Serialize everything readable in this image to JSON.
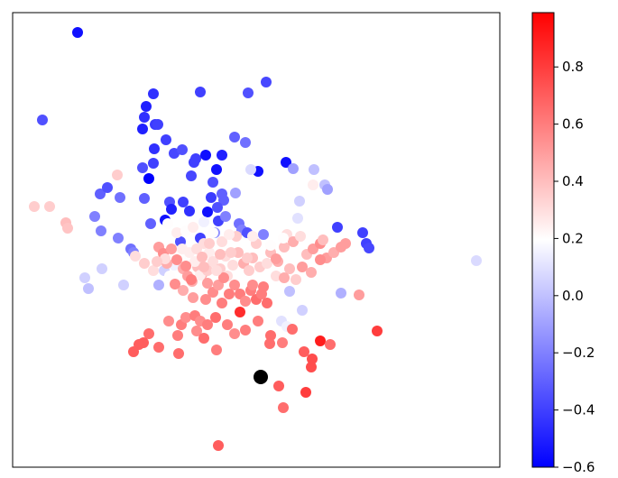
{
  "chart_data": {
    "type": "scatter",
    "title": "",
    "xlabel": "",
    "ylabel": "",
    "x_ticks_visible": false,
    "y_ticks_visible": false,
    "colormap": {
      "name": "bwr",
      "low": "#0000ff",
      "mid": "#ffffff",
      "high": "#ff0000"
    },
    "colorbar": {
      "range": [
        -0.6,
        0.99
      ],
      "ticks": [
        -0.6,
        -0.4,
        -0.2,
        0.0,
        0.2,
        0.4,
        0.6,
        0.8
      ],
      "tick_labels": [
        "−0.6",
        "−0.4",
        "−0.2",
        "0.0",
        "0.2",
        "0.4",
        "0.6",
        "0.8"
      ]
    },
    "marker": {
      "x": 289,
      "y": 418,
      "color": "#000000"
    },
    "points": [
      [
        86,
        36,
        -0.55
      ],
      [
        47,
        133,
        -0.35
      ],
      [
        170,
        104,
        -0.45
      ],
      [
        222,
        102,
        -0.4
      ],
      [
        275,
        103,
        -0.35
      ],
      [
        295,
        91,
        -0.38
      ],
      [
        162,
        118,
        -0.5
      ],
      [
        160,
        130,
        -0.45
      ],
      [
        172,
        138,
        -0.42
      ],
      [
        158,
        143,
        -0.5
      ],
      [
        175,
        138,
        -0.4
      ],
      [
        184,
        155,
        -0.4
      ],
      [
        171,
        165,
        -0.45
      ],
      [
        158,
        186,
        -0.35
      ],
      [
        193,
        170,
        -0.38
      ],
      [
        202,
        166,
        -0.35
      ],
      [
        217,
        176,
        -0.4
      ],
      [
        228,
        172,
        -0.55
      ],
      [
        246,
        172,
        -0.5
      ],
      [
        240,
        188,
        -0.55
      ],
      [
        215,
        180,
        -0.4
      ],
      [
        212,
        195,
        -0.38
      ],
      [
        260,
        152,
        -0.3
      ],
      [
        272,
        158,
        -0.25
      ],
      [
        286,
        190,
        -0.55
      ],
      [
        317,
        180,
        -0.55
      ],
      [
        278,
        188,
        0.08
      ],
      [
        325,
        187,
        -0.1
      ],
      [
        348,
        188,
        0.0
      ],
      [
        170,
        181,
        -0.4
      ],
      [
        165,
        198,
        -0.6
      ],
      [
        111,
        215,
        -0.3
      ],
      [
        119,
        208,
        -0.35
      ],
      [
        133,
        219,
        -0.25
      ],
      [
        160,
        220,
        -0.3
      ],
      [
        167,
        248,
        -0.3
      ],
      [
        105,
        240,
        -0.2
      ],
      [
        112,
        256,
        -0.2
      ],
      [
        188,
        224,
        -0.35
      ],
      [
        183,
        244,
        -0.55
      ],
      [
        190,
        232,
        -0.5
      ],
      [
        203,
        224,
        -0.4
      ],
      [
        210,
        234,
        -0.45
      ],
      [
        230,
        235,
        -0.55
      ],
      [
        234,
        219,
        -0.42
      ],
      [
        236,
        202,
        -0.35
      ],
      [
        246,
        215,
        -0.3
      ],
      [
        248,
        222,
        -0.3
      ],
      [
        242,
        245,
        -0.4
      ],
      [
        250,
        240,
        -0.2
      ],
      [
        261,
        214,
        -0.1
      ],
      [
        265,
        248,
        -0.25
      ],
      [
        241,
        230,
        -0.35
      ],
      [
        131,
        264,
        -0.2
      ],
      [
        145,
        276,
        -0.25
      ],
      [
        148,
        280,
        -0.2
      ],
      [
        200,
        268,
        -0.35
      ],
      [
        222,
        264,
        -0.4
      ],
      [
        238,
        258,
        -0.15
      ],
      [
        268,
        255,
        -0.2
      ],
      [
        274,
        258,
        -0.35
      ],
      [
        292,
        260,
        -0.2
      ],
      [
        374,
        252,
        -0.4
      ],
      [
        402,
        258,
        -0.4
      ],
      [
        406,
        270,
        -0.4
      ],
      [
        409,
        275,
        -0.38
      ],
      [
        360,
        205,
        0.0
      ],
      [
        363,
        210,
        -0.1
      ],
      [
        347,
        205,
        0.25
      ],
      [
        332,
        223,
        0.05
      ],
      [
        330,
        242,
        0.1
      ],
      [
        38,
        229,
        0.35
      ],
      [
        55,
        229,
        0.35
      ],
      [
        73,
        247,
        0.4
      ],
      [
        75,
        253,
        0.38
      ],
      [
        130,
        194,
        0.35
      ],
      [
        528,
        289,
        0.08
      ],
      [
        94,
        308,
        0.05
      ],
      [
        98,
        320,
        0.0
      ],
      [
        113,
        298,
        0.05
      ],
      [
        137,
        316,
        0.05
      ],
      [
        378,
        325,
        -0.05
      ],
      [
        321,
        323,
        0.0
      ],
      [
        335,
        344,
        0.05
      ],
      [
        312,
        356,
        0.1
      ],
      [
        318,
        362,
        0.15
      ],
      [
        176,
        316,
        -0.05
      ],
      [
        182,
        300,
        0.05
      ],
      [
        193,
        294,
        0.15
      ],
      [
        200,
        285,
        0.2
      ],
      [
        210,
        280,
        0.25
      ],
      [
        218,
        276,
        0.3
      ],
      [
        226,
        270,
        0.3
      ],
      [
        232,
        280,
        0.25
      ],
      [
        236,
        290,
        0.3
      ],
      [
        244,
        298,
        0.35
      ],
      [
        252,
        306,
        0.3
      ],
      [
        258,
        294,
        0.3
      ],
      [
        264,
        280,
        0.4
      ],
      [
        270,
        292,
        0.45
      ],
      [
        276,
        300,
        0.35
      ],
      [
        280,
        286,
        0.4
      ],
      [
        288,
        296,
        0.35
      ],
      [
        296,
        292,
        0.3
      ],
      [
        300,
        280,
        0.4
      ],
      [
        308,
        290,
        0.45
      ],
      [
        315,
        274,
        0.4
      ],
      [
        318,
        260,
        0.3
      ],
      [
        325,
        268,
        0.45
      ],
      [
        333,
        262,
        0.3
      ],
      [
        340,
        282,
        0.4
      ],
      [
        347,
        276,
        0.5
      ],
      [
        355,
        270,
        0.55
      ],
      [
        362,
        286,
        0.5
      ],
      [
        370,
        280,
        0.45
      ],
      [
        378,
        274,
        0.5
      ],
      [
        383,
        270,
        0.5
      ],
      [
        355,
        288,
        0.55
      ],
      [
        335,
        296,
        0.5
      ],
      [
        321,
        298,
        0.4
      ],
      [
        345,
        302,
        0.45
      ],
      [
        306,
        287,
        0.5
      ],
      [
        176,
        274,
        0.5
      ],
      [
        181,
        281,
        0.55
      ],
      [
        185,
        292,
        0.45
      ],
      [
        190,
        276,
        0.5
      ],
      [
        196,
        288,
        0.55
      ],
      [
        203,
        298,
        0.45
      ],
      [
        208,
        306,
        0.5
      ],
      [
        213,
        312,
        0.45
      ],
      [
        219,
        296,
        0.4
      ],
      [
        224,
        304,
        0.45
      ],
      [
        230,
        314,
        0.5
      ],
      [
        236,
        324,
        0.55
      ],
      [
        242,
        316,
        0.5
      ],
      [
        248,
        308,
        0.55
      ],
      [
        254,
        326,
        0.6
      ],
      [
        260,
        316,
        0.55
      ],
      [
        266,
        326,
        0.6
      ],
      [
        272,
        334,
        0.55
      ],
      [
        278,
        322,
        0.6
      ],
      [
        284,
        332,
        0.65
      ],
      [
        290,
        326,
        0.6
      ],
      [
        296,
        336,
        0.65
      ],
      [
        280,
        316,
        0.55
      ],
      [
        292,
        318,
        0.6
      ],
      [
        266,
        346,
        0.85
      ],
      [
        246,
        336,
        0.6
      ],
      [
        228,
        332,
        0.55
      ],
      [
        214,
        330,
        0.5
      ],
      [
        203,
        322,
        0.45
      ],
      [
        187,
        356,
        0.55
      ],
      [
        201,
        360,
        0.6
      ],
      [
        206,
        352,
        0.55
      ],
      [
        216,
        350,
        0.6
      ],
      [
        222,
        356,
        0.55
      ],
      [
        230,
        360,
        0.6
      ],
      [
        239,
        352,
        0.65
      ],
      [
        218,
        367,
        0.55
      ],
      [
        252,
        360,
        0.6
      ],
      [
        260,
        370,
        0.55
      ],
      [
        272,
        366,
        0.6
      ],
      [
        286,
        356,
        0.6
      ],
      [
        300,
        372,
        0.65
      ],
      [
        165,
        370,
        0.65
      ],
      [
        159,
        380,
        0.7
      ],
      [
        154,
        382,
        0.7
      ],
      [
        148,
        390,
        0.7
      ],
      [
        176,
        385,
        0.65
      ],
      [
        197,
        372,
        0.6
      ],
      [
        198,
        392,
        0.65
      ],
      [
        226,
        375,
        0.65
      ],
      [
        240,
        388,
        0.6
      ],
      [
        299,
        381,
        0.65
      ],
      [
        313,
        380,
        0.6
      ],
      [
        324,
        365,
        0.65
      ],
      [
        337,
        390,
        0.7
      ],
      [
        346,
        398,
        0.75
      ],
      [
        345,
        407,
        0.75
      ],
      [
        355,
        378,
        0.9
      ],
      [
        366,
        382,
        0.65
      ],
      [
        418,
        367,
        0.8
      ],
      [
        309,
        428,
        0.7
      ],
      [
        314,
        452,
        0.65
      ],
      [
        339,
        435,
        0.8
      ],
      [
        242,
        494,
        0.7
      ],
      [
        150,
        284,
        0.3
      ],
      [
        160,
        292,
        0.35
      ],
      [
        170,
        300,
        0.3
      ],
      [
        183,
        287,
        0.3
      ],
      [
        174,
        290,
        0.35
      ],
      [
        188,
        306,
        0.2
      ],
      [
        202,
        276,
        0.25
      ],
      [
        216,
        290,
        0.25
      ],
      [
        246,
        268,
        0.3
      ],
      [
        262,
        262,
        0.35
      ],
      [
        284,
        270,
        0.35
      ],
      [
        300,
        272,
        0.2
      ],
      [
        314,
        264,
        0.2
      ],
      [
        222,
        305,
        0.25
      ],
      [
        230,
        300,
        0.35
      ],
      [
        240,
        300,
        0.3
      ],
      [
        250,
        284,
        0.3
      ],
      [
        256,
        280,
        0.35
      ],
      [
        274,
        286,
        0.35
      ],
      [
        306,
        306,
        0.3
      ],
      [
        328,
        310,
        0.35
      ],
      [
        315,
        308,
        0.45
      ],
      [
        398,
        327,
        0.5
      ],
      [
        358,
        266,
        0.4
      ],
      [
        186,
        248,
        0.2
      ],
      [
        196,
        258,
        0.25
      ],
      [
        206,
        256,
        0.2
      ],
      [
        214,
        252,
        0.25
      ],
      [
        226,
        246,
        0.15
      ],
      [
        236,
        258,
        0.2
      ],
      [
        254,
        260,
        0.25
      ],
      [
        280,
        262,
        0.25
      ],
      [
        224,
        285,
        0.4
      ],
      [
        244,
        282,
        0.4
      ],
      [
        232,
        270,
        0.35
      ],
      [
        206,
        295,
        0.55
      ],
      [
        212,
        310,
        0.6
      ],
      [
        194,
        315,
        0.55
      ],
      [
        226,
        296,
        0.4
      ]
    ]
  }
}
